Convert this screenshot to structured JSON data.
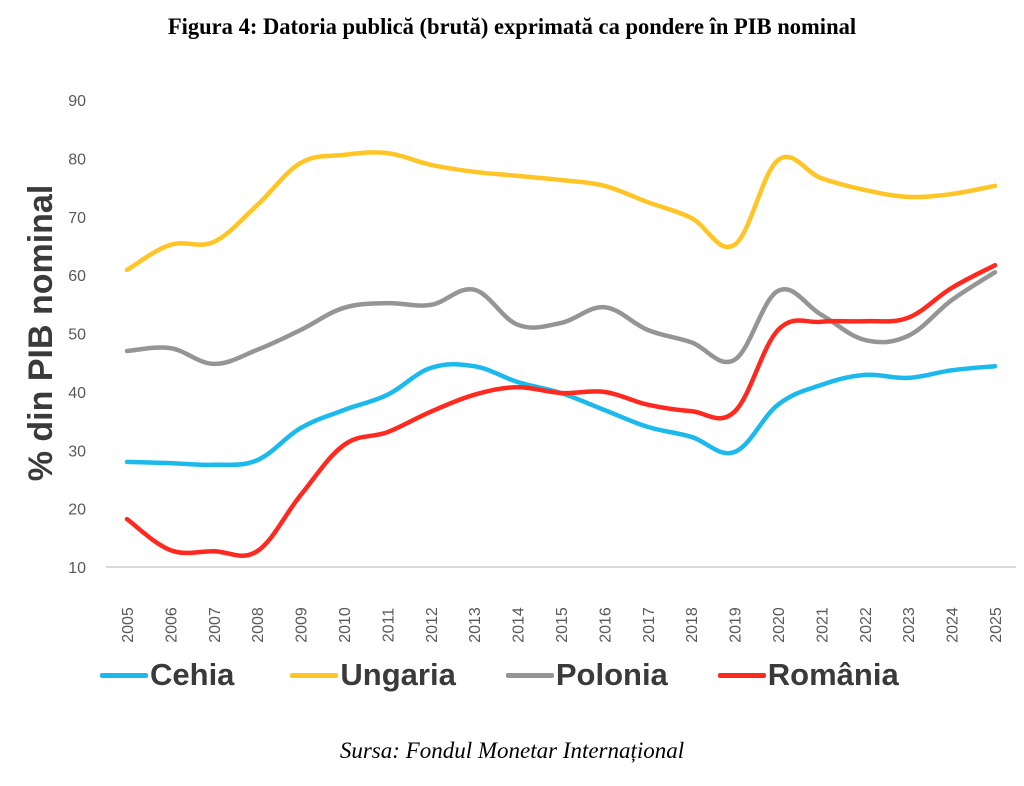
{
  "title": "Figura 4: Datoria publică (brută) exprimată ca pondere în PIB nominal",
  "source": "Sursa: Fondul Monetar Internațional",
  "chart_data": {
    "type": "line",
    "title": "Figura 4: Datoria publică (brută) exprimată ca pondere în PIB nominal",
    "xlabel": "",
    "ylabel": "% din PIB nominal",
    "ylim": [
      10,
      90
    ],
    "yticks": [
      "10",
      "20",
      "30",
      "40",
      "50",
      "60",
      "70",
      "80",
      "90"
    ],
    "ytick_values": [
      10,
      20,
      30,
      40,
      50,
      60,
      70,
      80,
      90
    ],
    "x": [
      "2005",
      "2006",
      "2007",
      "2008",
      "2009",
      "2010",
      "2011",
      "2012",
      "2013",
      "2014",
      "2015",
      "2016",
      "2017",
      "2018",
      "2019",
      "2020",
      "2021",
      "2022",
      "2023",
      "2024",
      "2025"
    ],
    "grid": false,
    "smooth": true,
    "legend_position": "bottom",
    "series": [
      {
        "name": "Cehia",
        "color": "#1CB9EC",
        "values": [
          28.0,
          27.8,
          27.5,
          28.3,
          33.8,
          36.9,
          39.5,
          44.1,
          44.4,
          41.7,
          39.8,
          36.9,
          34.0,
          32.3,
          29.7,
          37.8,
          41.2,
          42.9,
          42.4,
          43.7,
          44.4
        ]
      },
      {
        "name": "Ungaria",
        "color": "#FFC426",
        "values": [
          60.9,
          65.2,
          65.7,
          72.0,
          79.2,
          80.6,
          80.9,
          78.9,
          77.7,
          77.0,
          76.3,
          75.3,
          72.5,
          69.8,
          65.2,
          79.7,
          76.6,
          74.6,
          73.4,
          73.9,
          75.3
        ]
      },
      {
        "name": "Polonia",
        "color": "#959595",
        "values": [
          47.0,
          47.5,
          44.8,
          47.2,
          50.6,
          54.4,
          55.2,
          54.9,
          57.5,
          51.5,
          51.8,
          54.5,
          50.6,
          48.5,
          45.5,
          57.3,
          53.2,
          48.9,
          49.6,
          55.7,
          60.5
        ]
      },
      {
        "name": "România",
        "color": "#FF2A1F",
        "values": [
          18.2,
          12.9,
          12.7,
          12.7,
          22.3,
          30.9,
          33.1,
          36.6,
          39.5,
          40.8,
          39.8,
          40.0,
          37.8,
          36.7,
          36.6,
          50.6,
          52.0,
          52.1,
          52.7,
          57.8,
          61.7
        ]
      }
    ]
  }
}
